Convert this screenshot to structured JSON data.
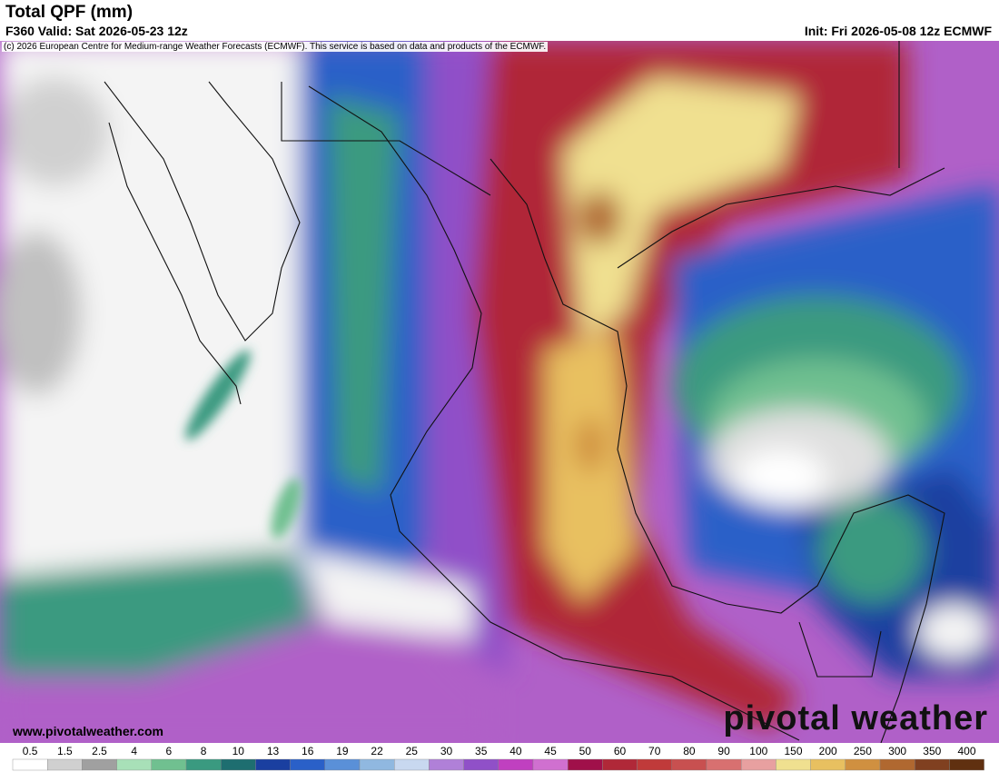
{
  "header": {
    "title": "Total QPF (mm)",
    "valid": "F360 Valid: Sat 2026-05-23 12z",
    "init": "Init: Fri 2026-05-08 12z ECMWF",
    "copyright": "(c) 2026 European Centre for Medium-range Weather Forecasts (ECMWF). This service is based on data and products of the ECMWF."
  },
  "footer": {
    "website": "www.pivotalweather.com",
    "logo": "pivotal weather"
  },
  "legend": {
    "ticks": [
      0.5,
      1.5,
      2.5,
      4,
      6,
      8,
      10,
      13,
      16,
      19,
      22,
      25,
      30,
      35,
      40,
      45,
      50,
      60,
      70,
      80,
      90,
      100,
      150,
      200,
      250,
      300,
      350,
      400
    ],
    "colors": [
      "#ffffff",
      "#d0d0d0",
      "#a0a0a0",
      "#a8e0b8",
      "#70c090",
      "#3a9a80",
      "#1e6e70",
      "#1a3fa0",
      "#2a60c8",
      "#5a90d8",
      "#90b8e0",
      "#c8d8f0",
      "#b080d8",
      "#9050c8",
      "#c040c0",
      "#d070d0",
      "#a0104a",
      "#b02838",
      "#c03a3a",
      "#c85050",
      "#d87070",
      "#e8a0a0",
      "#f0e090",
      "#e8c060",
      "#d09040",
      "#b06830",
      "#804020",
      "#603010"
    ]
  }
}
